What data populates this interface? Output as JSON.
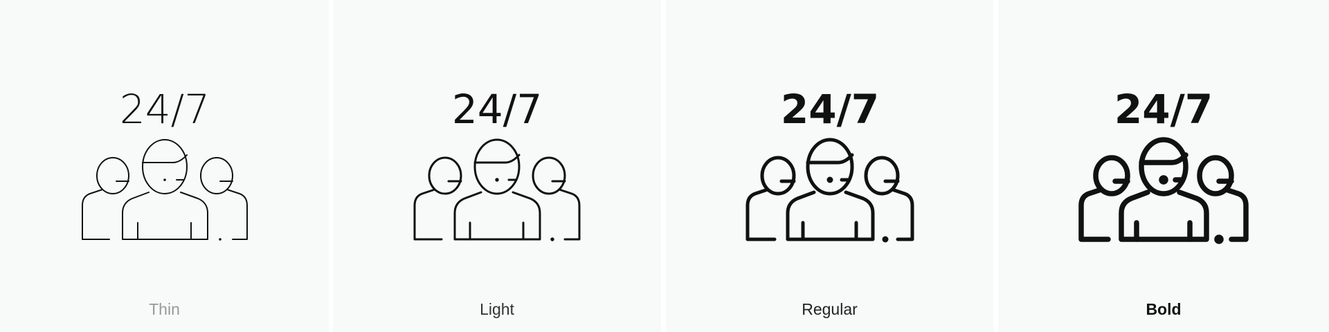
{
  "icon_text": "24/7",
  "panels": [
    {
      "label": "Thin",
      "label_color": "#9a9a9a",
      "weight": "thin"
    },
    {
      "label": "Light",
      "label_color": "#333333",
      "weight": "light"
    },
    {
      "label": "Regular",
      "label_color": "#222222",
      "weight": "regular"
    },
    {
      "label": "Bold",
      "label_color": "#111111",
      "weight": "bold"
    }
  ]
}
